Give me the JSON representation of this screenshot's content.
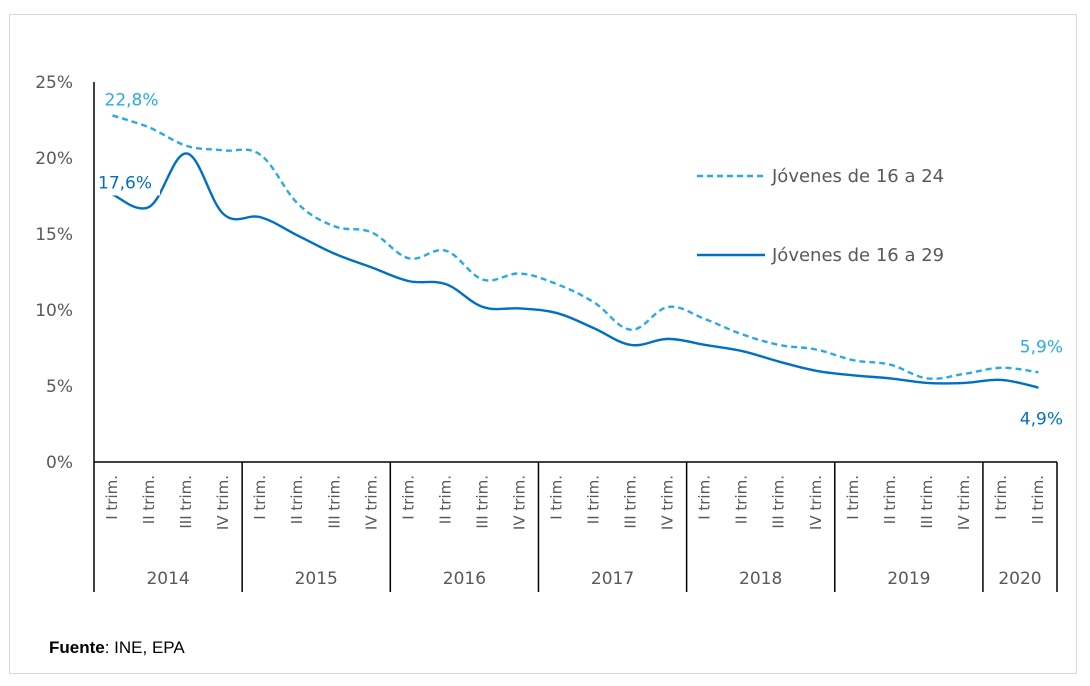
{
  "source": {
    "label": "Fuente",
    "text": ": INE, EPA"
  },
  "colors": {
    "series1": "#29ABE2",
    "series2": "#0070C0",
    "axis": "#000000",
    "text": "#595959"
  },
  "chart_data": {
    "type": "line",
    "y_ticks": [
      "0%",
      "5%",
      "10%",
      "15%",
      "20%",
      "25%"
    ],
    "ylim": [
      0,
      25
    ],
    "categories": [
      "I trim.",
      "II trim.",
      "III trim.",
      "IV trim.",
      "I trim.",
      "II trim.",
      "III trim.",
      "IV trim.",
      "I trim.",
      "II trim.",
      "III trim.",
      "IV trim.",
      "I trim.",
      "II trim.",
      "III trim.",
      "IV trim.",
      "I trim.",
      "II trim.",
      "III trim.",
      "IV trim.",
      "I trim.",
      "II trim.",
      "III trim.",
      "IV trim.",
      "I trim.",
      "II trim."
    ],
    "years": [
      {
        "label": "2014",
        "count": 4
      },
      {
        "label": "2015",
        "count": 4
      },
      {
        "label": "2016",
        "count": 4
      },
      {
        "label": "2017",
        "count": 4
      },
      {
        "label": "2018",
        "count": 4
      },
      {
        "label": "2019",
        "count": 4
      },
      {
        "label": "2020",
        "count": 2
      }
    ],
    "legend_position": "right",
    "series": [
      {
        "name": "Jóvenes de 16 a 24",
        "style": "dashed",
        "values": [
          22.8,
          22.0,
          20.8,
          20.5,
          20.2,
          17.0,
          15.5,
          15.1,
          13.4,
          13.9,
          12.0,
          12.4,
          11.7,
          10.5,
          8.7,
          10.2,
          9.4,
          8.4,
          7.7,
          7.4,
          6.7,
          6.4,
          5.5,
          5.8,
          6.2,
          5.9
        ],
        "start_label": "22,8%",
        "end_label": "5,9%"
      },
      {
        "name": "Jóvenes de 16 a 29",
        "style": "solid",
        "values": [
          17.6,
          16.8,
          20.3,
          16.3,
          16.1,
          14.9,
          13.7,
          12.8,
          11.9,
          11.7,
          10.2,
          10.1,
          9.8,
          8.8,
          7.7,
          8.1,
          7.7,
          7.3,
          6.6,
          6.0,
          5.7,
          5.5,
          5.2,
          5.2,
          5.4,
          4.9
        ],
        "start_label": "17,6%",
        "end_label": "4,9%"
      }
    ]
  }
}
